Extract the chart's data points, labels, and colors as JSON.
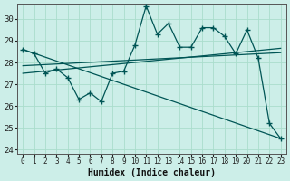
{
  "xlabel": "Humidex (Indice chaleur)",
  "ylabel": "",
  "background_color": "#cceee8",
  "grid_color": "#aaddcc",
  "line_color": "#005555",
  "xlim": [
    -0.5,
    23.5
  ],
  "ylim": [
    23.8,
    30.7
  ],
  "yticks": [
    24,
    25,
    26,
    27,
    28,
    29,
    30
  ],
  "xticks": [
    0,
    1,
    2,
    3,
    4,
    5,
    6,
    7,
    8,
    9,
    10,
    11,
    12,
    13,
    14,
    15,
    16,
    17,
    18,
    19,
    20,
    21,
    22,
    23
  ],
  "series1_x": [
    0,
    1,
    2,
    3,
    4,
    5,
    6,
    7,
    8,
    9,
    10,
    11,
    12,
    13,
    14,
    15,
    16,
    17,
    18,
    19,
    20,
    21,
    22,
    23
  ],
  "series1_y": [
    28.6,
    28.4,
    27.5,
    27.7,
    27.3,
    26.3,
    26.6,
    26.2,
    27.5,
    27.6,
    28.8,
    30.6,
    29.3,
    29.8,
    28.7,
    28.7,
    29.6,
    29.6,
    29.2,
    28.4,
    29.5,
    28.2,
    25.2,
    24.5
  ],
  "line2_x0": 0,
  "line2_x1": 23,
  "line2_y0": 28.6,
  "line2_y1": 24.5,
  "line3_x0": 0,
  "line3_x1": 23,
  "line3_y0": 27.85,
  "line3_y1": 28.45,
  "line4_x0": 0,
  "line4_x1": 23,
  "line4_y0": 27.5,
  "line4_y1": 28.65
}
